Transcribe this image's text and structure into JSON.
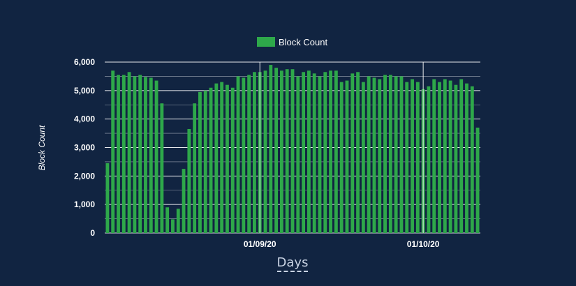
{
  "chart_data": {
    "type": "bar",
    "legend": {
      "label": "Block Count",
      "color": "#2ea84a",
      "placement": "top-center"
    },
    "ylabel": "Block Count",
    "xlabel": "Days",
    "ylim": [
      0,
      6000
    ],
    "yticks": [
      "0",
      "1,000",
      "2,000",
      "3,000",
      "4,000",
      "5,000",
      "6,000"
    ],
    "ytick_values": [
      0,
      1000,
      2000,
      3000,
      4000,
      5000,
      6000
    ],
    "grid": true,
    "bar_color": "#2ea84a",
    "xticks": [
      {
        "label": "01/09/20",
        "index": 28
      },
      {
        "label": "01/10/20",
        "index": 58
      }
    ],
    "x_start": "2020-08-04",
    "x_end": "2020-10-14",
    "values": [
      2450,
      5700,
      5550,
      5550,
      5650,
      5500,
      5550,
      5480,
      5450,
      5350,
      4550,
      900,
      480,
      850,
      2250,
      3650,
      4550,
      4950,
      5000,
      5100,
      5250,
      5300,
      5200,
      5100,
      5500,
      5450,
      5550,
      5650,
      5650,
      5700,
      5900,
      5800,
      5700,
      5750,
      5750,
      5500,
      5650,
      5700,
      5600,
      5500,
      5650,
      5700,
      5700,
      5300,
      5350,
      5600,
      5650,
      5300,
      5500,
      5450,
      5400,
      5550,
      5550,
      5500,
      5500,
      5300,
      5400,
      5300,
      5050,
      5150,
      5400,
      5300,
      5400,
      5350,
      5200,
      5400,
      5250,
      5150,
      3700
    ]
  }
}
